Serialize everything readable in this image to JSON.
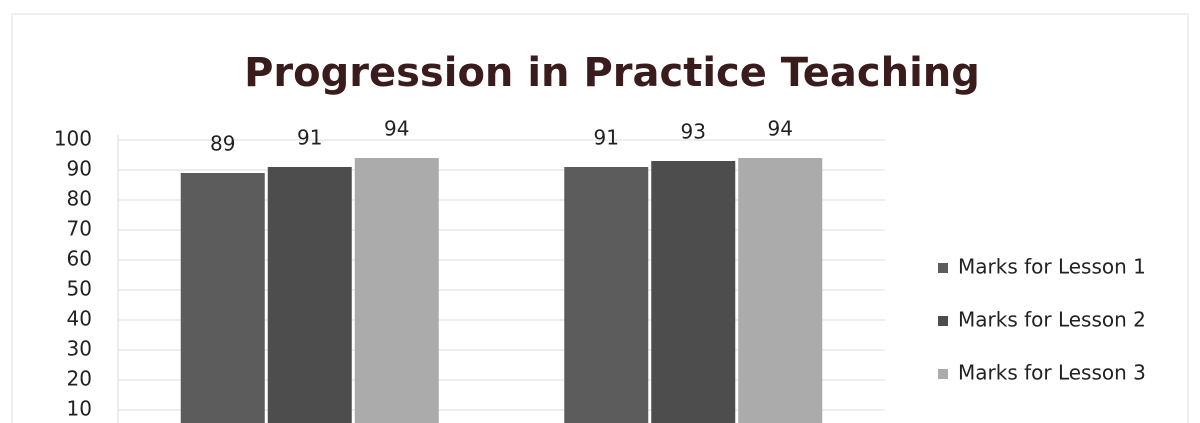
{
  "chart_data": {
    "type": "bar",
    "title": "Progression in Practice Teaching",
    "categories": [
      null,
      null
    ],
    "series": [
      {
        "name": "Marks for Lesson 1",
        "color": "#5c5c5c",
        "values": [
          89,
          91
        ]
      },
      {
        "name": "Marks for Lesson 2",
        "color": "#4d4d4d",
        "values": [
          91,
          93
        ]
      },
      {
        "name": "Marks for Lesson 3",
        "color": "#ababab",
        "values": [
          94,
          94
        ]
      }
    ],
    "ylim": [
      0,
      100
    ],
    "yticks": [
      10,
      20,
      30,
      40,
      50,
      60,
      70,
      80,
      90,
      100
    ],
    "grid": true,
    "legend": "right"
  }
}
